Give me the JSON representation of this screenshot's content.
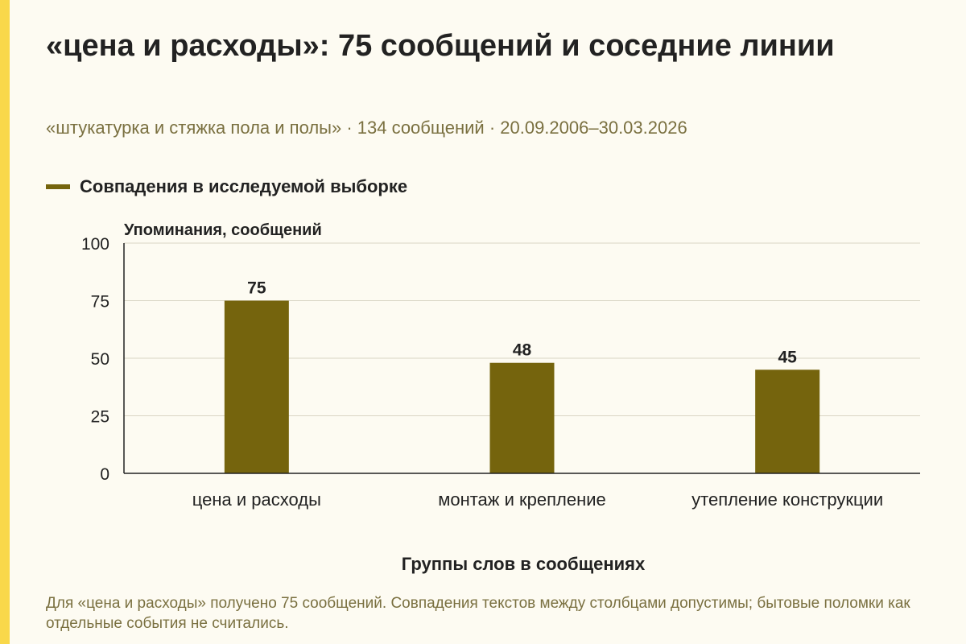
{
  "title": "«цена и расходы»: 75 сообщений и соседние линии",
  "subtitle": "«штукатурка и стяжка пола и полы» · 134 сообщений · 20.09.2006–30.03.2026",
  "footnote": "Для «цена и расходы» получено 75 сообщений. Совпадения текстов между столбцами допустимы; бытовые поломки как отдельные события не считались.",
  "colors": {
    "bar": "#75640d",
    "accent": "#f9d84a",
    "background": "#fdfbf2"
  },
  "chart_data": {
    "type": "bar",
    "ylabel": "Упоминания, сообщений",
    "xlabel": "Группы слов в сообщениях",
    "categories": [
      "цена и расходы",
      "монтаж и крепление",
      "утепление конструкции"
    ],
    "series": [
      {
        "name": "Совпадения в исследуемой выборке",
        "values": [
          75,
          48,
          45
        ]
      }
    ],
    "ylim": [
      0,
      100
    ],
    "yticks": [
      0,
      25,
      50,
      75,
      100
    ],
    "grid": true,
    "legend": "top-left",
    "data_labels": true
  }
}
